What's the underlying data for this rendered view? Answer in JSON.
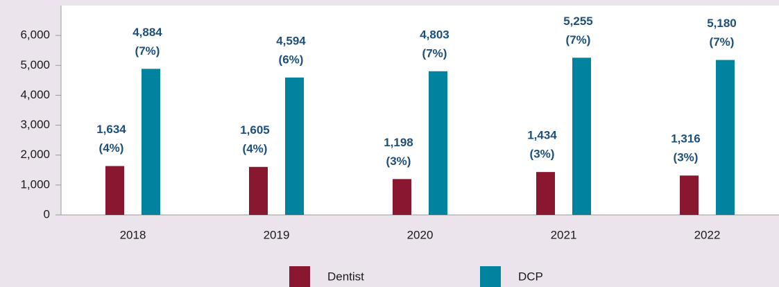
{
  "chart_data": {
    "type": "bar",
    "categories": [
      "2018",
      "2019",
      "2020",
      "2021",
      "2022"
    ],
    "series": [
      {
        "name": "Dentist",
        "color": "#8a1730",
        "values": [
          1634,
          1605,
          1198,
          1434,
          1316
        ],
        "value_labels": [
          "1,634",
          "1,605",
          "1,198",
          "1,434",
          "1,316"
        ],
        "percent_labels": [
          "(4%)",
          "(4%)",
          "(3%)",
          "(3%)",
          "(3%)"
        ]
      },
      {
        "name": "DCP",
        "color": "#00839e",
        "values": [
          4884,
          4594,
          4803,
          5255,
          5180
        ],
        "value_labels": [
          "4,884",
          "4,594",
          "4,803",
          "5,255",
          "5,180"
        ],
        "percent_labels": [
          "(7%)",
          "(6%)",
          "(7%)",
          "(7%)",
          "(7%)"
        ]
      }
    ],
    "ylim": [
      0,
      7000
    ],
    "yticks": [
      0,
      {
        "value": 1000,
        "label": "1,000"
      },
      {
        "value": 2000,
        "label": "2,000"
      },
      {
        "value": 3000,
        "label": "3,000"
      },
      {
        "value": 4000,
        "label": "4,000"
      },
      {
        "value": 5000,
        "label": "5,000"
      },
      {
        "value": 6000,
        "label": "6,000"
      }
    ],
    "grid": false
  }
}
